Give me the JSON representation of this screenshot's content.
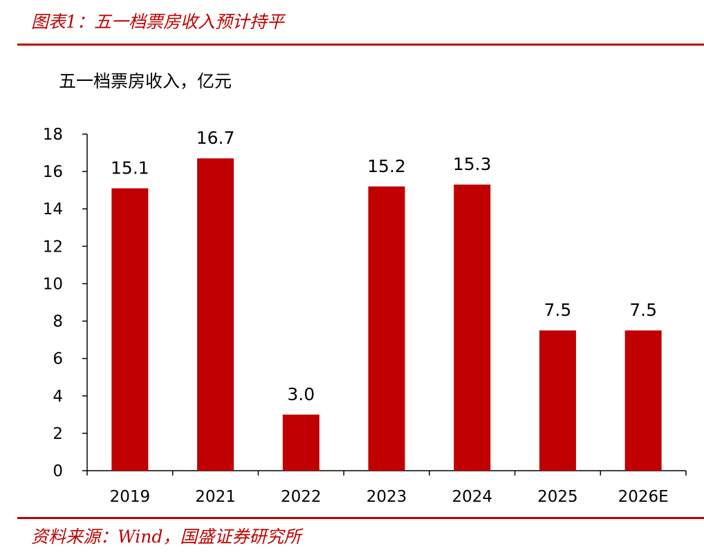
{
  "header": {
    "title": "图表1：五一档票房收入预计持平"
  },
  "footer": {
    "source": "资料来源：Wind，国盛证券研究所"
  },
  "chart_data": {
    "type": "bar",
    "ylabel": "五一档票房收入，亿元",
    "categories": [
      "2019",
      "2021",
      "2022",
      "2023",
      "2024",
      "2025",
      "2026E"
    ],
    "values": [
      15.1,
      16.7,
      3.0,
      15.2,
      15.3,
      7.5,
      7.5
    ],
    "data_labels": [
      "15.1",
      "16.7",
      "3.0",
      "15.2",
      "15.3",
      "7.5",
      "7.5"
    ],
    "ylim": [
      0,
      18
    ],
    "yticks": [
      0,
      2,
      4,
      6,
      8,
      10,
      12,
      14,
      16,
      18
    ],
    "bar_color": "#c00000",
    "grid": false,
    "legend": "none"
  }
}
